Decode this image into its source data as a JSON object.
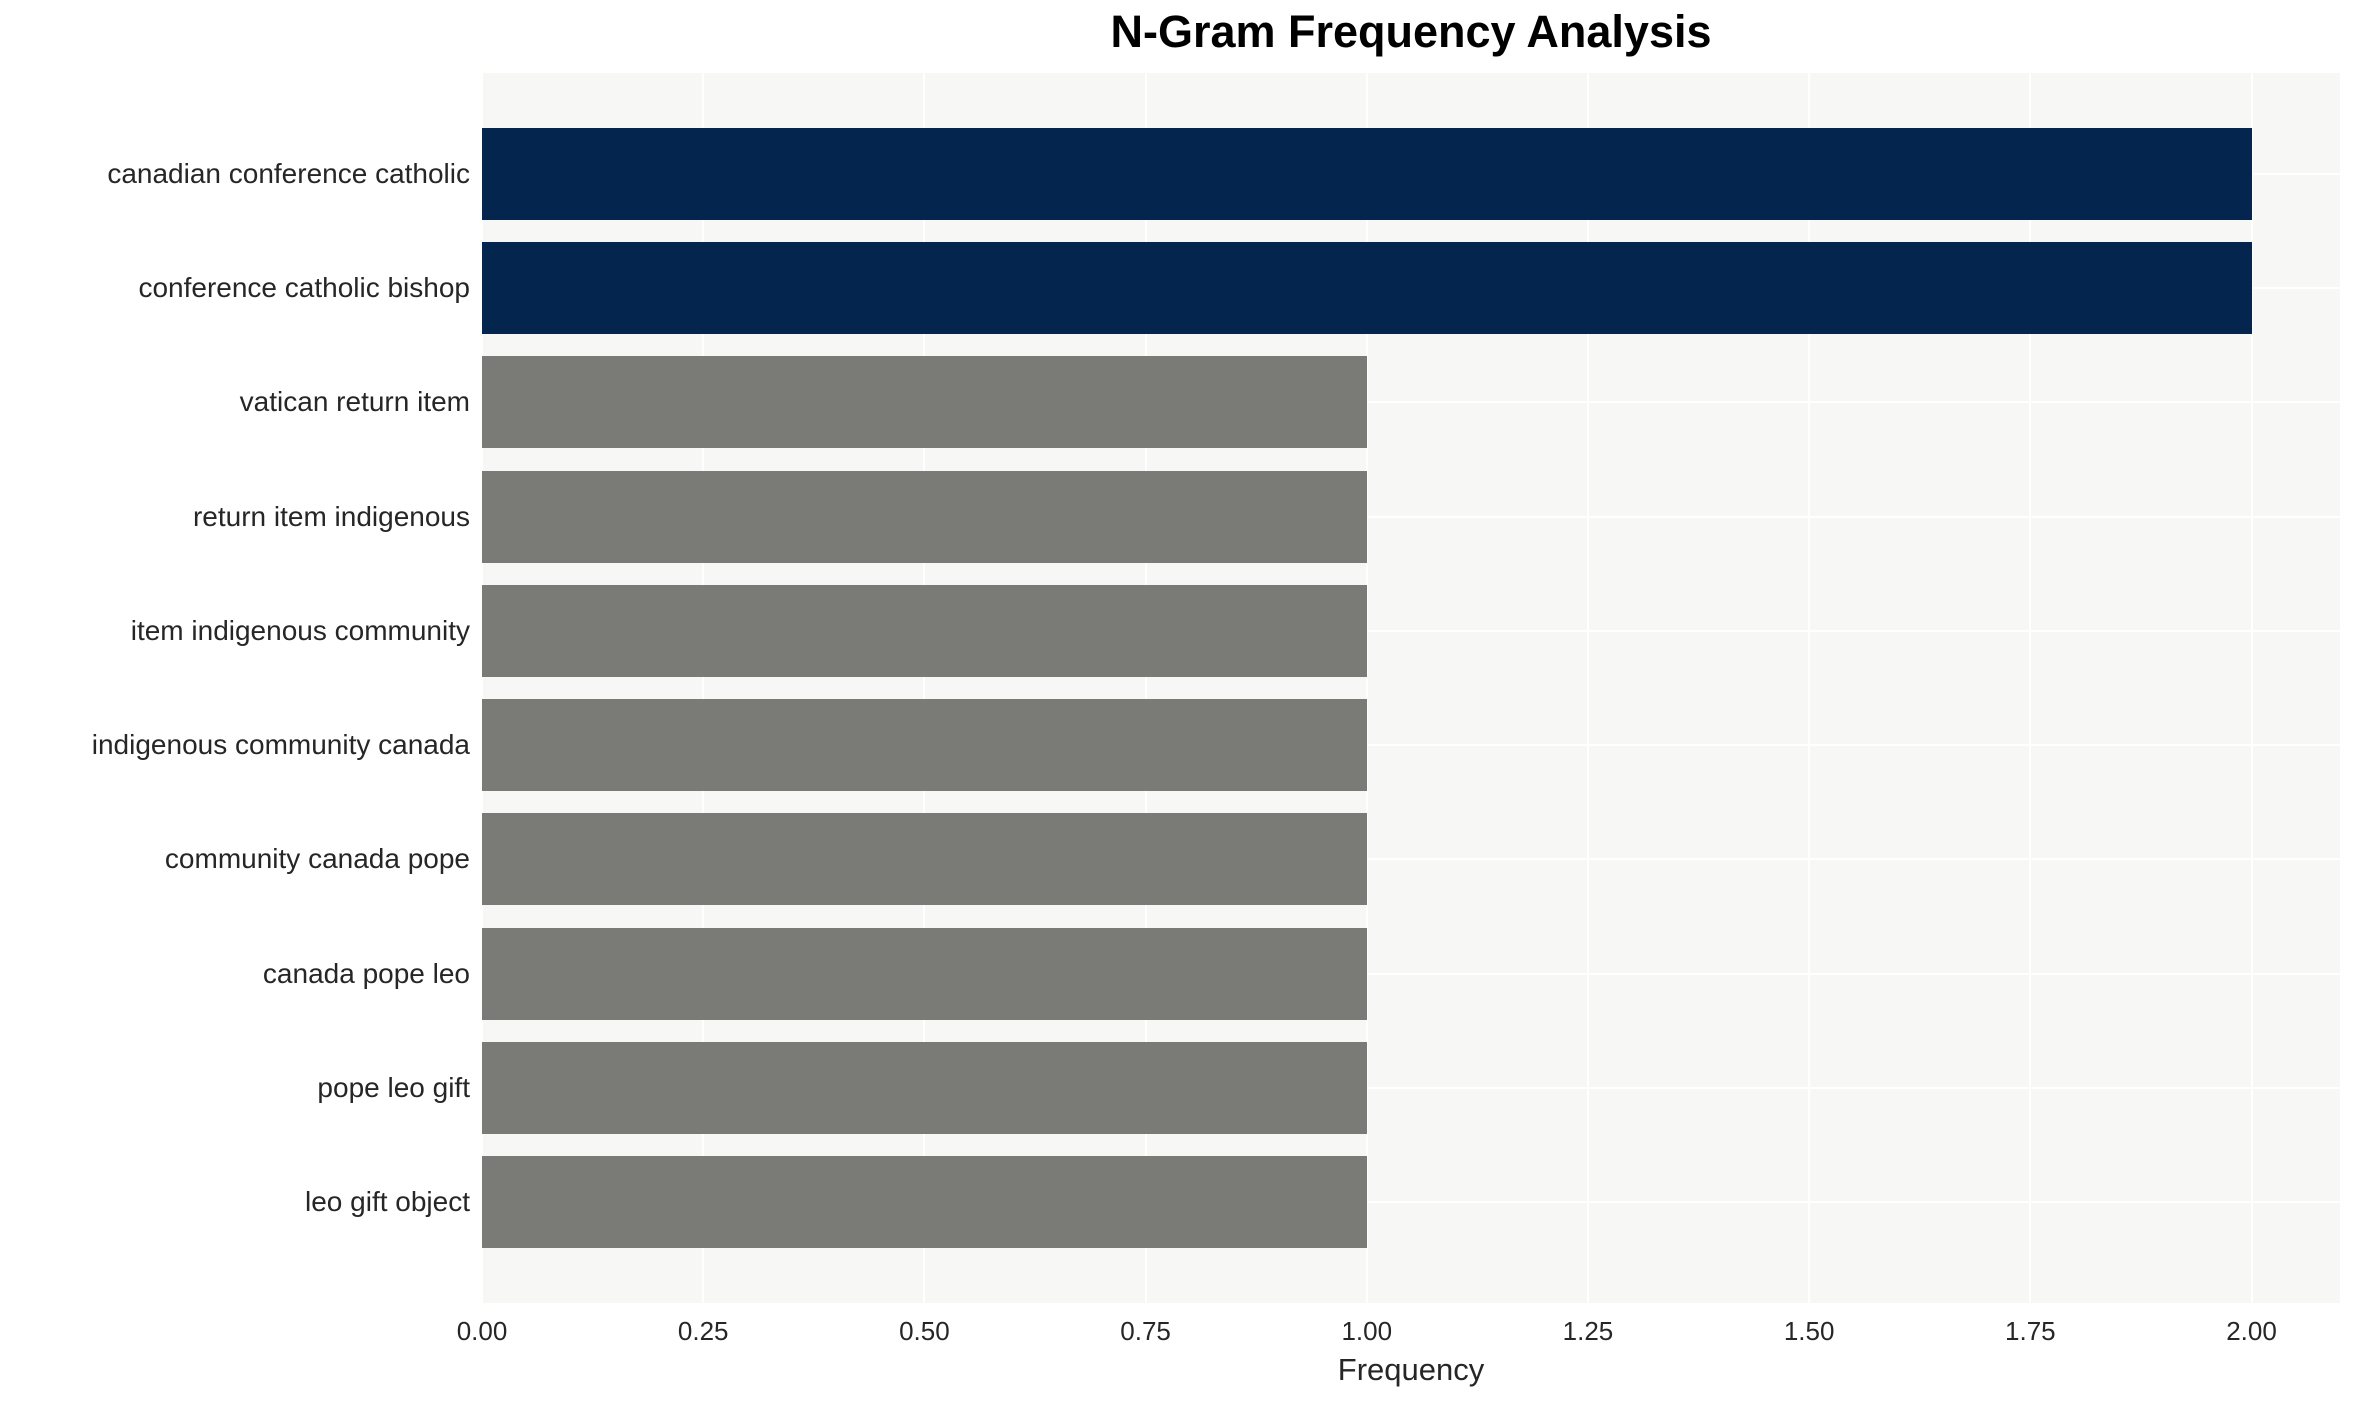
{
  "chart_data": {
    "type": "bar",
    "orientation": "horizontal",
    "title": "N-Gram Frequency Analysis",
    "xlabel": "Frequency",
    "ylabel": "",
    "categories": [
      "canadian conference catholic",
      "conference catholic bishop",
      "vatican return item",
      "return item indigenous",
      "item indigenous community",
      "indigenous community canada",
      "community canada pope",
      "canada pope leo",
      "pope leo gift",
      "leo gift object"
    ],
    "values": [
      2,
      2,
      1,
      1,
      1,
      1,
      1,
      1,
      1,
      1
    ],
    "bar_colors": [
      "#03254e",
      "#03254e",
      "#7a7a77",
      "#7a7a77",
      "#7a7a77",
      "#7a7a77",
      "#7a7a77",
      "#7a7a77",
      "#7a7a77",
      "#7a7a77"
    ],
    "xlim": [
      0,
      2.1
    ],
    "xticks": [
      {
        "value": 0.0,
        "label": "0.00"
      },
      {
        "value": 0.25,
        "label": "0.25"
      },
      {
        "value": 0.5,
        "label": "0.50"
      },
      {
        "value": 0.75,
        "label": "0.75"
      },
      {
        "value": 1.0,
        "label": "1.00"
      },
      {
        "value": 1.25,
        "label": "1.25"
      },
      {
        "value": 1.5,
        "label": "1.50"
      },
      {
        "value": 1.75,
        "label": "1.75"
      },
      {
        "value": 2.0,
        "label": "2.00"
      }
    ],
    "grid": {
      "vertical": true,
      "horizontal": true
    },
    "legend": null,
    "colors": {
      "highlight_bar": "#03254e",
      "default_bar": "#7a7a77",
      "plot_background": "#f7f7f6",
      "gridline": "#ffffff",
      "figure_background": "#ffffff",
      "title_text": "#000000",
      "tick_text": "#262626"
    }
  }
}
